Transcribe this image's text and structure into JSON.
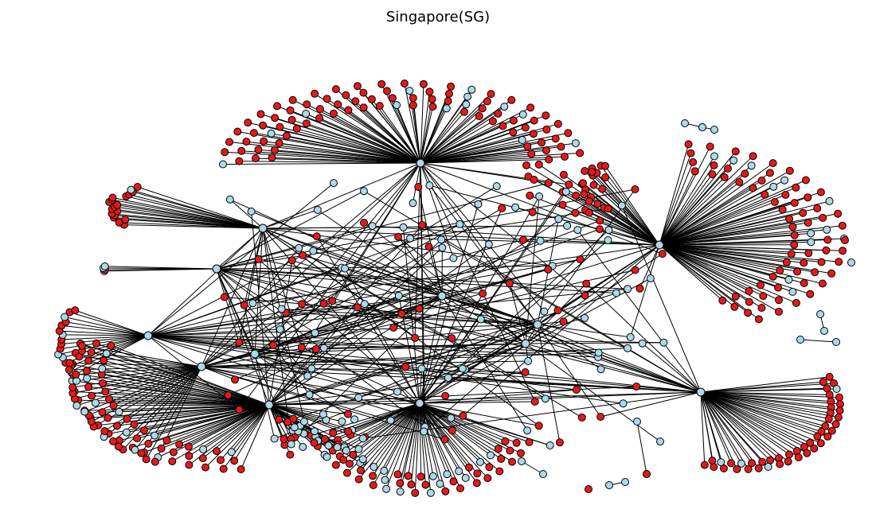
{
  "title": "Singapore(SG)",
  "colors": {
    "edge": "#000000",
    "node_red": "#e31a1c",
    "node_blue": "#add8e6",
    "node_stroke": "#000000"
  }
}
